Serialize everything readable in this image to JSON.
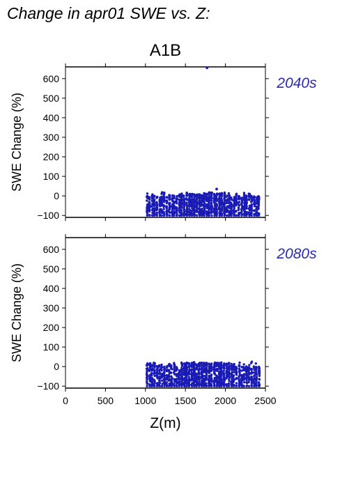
{
  "figure": {
    "title": "Change in apr01 SWE vs. Z:",
    "scenario": "A1B"
  },
  "chart_data": [
    {
      "type": "scatter",
      "period_label": "2040s",
      "ylabel": "SWE Change (%)",
      "xlabel": "",
      "xlim": [
        0,
        2500
      ],
      "ylim": [
        -110,
        660
      ],
      "xticks": [
        0,
        500,
        1000,
        1500,
        2000,
        2500
      ],
      "yticks": [
        -100,
        0,
        100,
        200,
        300,
        400,
        500,
        600
      ],
      "ytick_labels": [
        "−100",
        "0",
        "100",
        "200",
        "300",
        "400",
        "500",
        "600"
      ],
      "point_color": "#1a1ab4",
      "x_range_of_points": [
        1020,
        2420
      ],
      "y_range_of_points": [
        -100,
        20
      ],
      "outliers": [
        {
          "x": 1770,
          "y": 655
        },
        {
          "x": 1890,
          "y": 35
        }
      ]
    },
    {
      "type": "scatter",
      "period_label": "2080s",
      "ylabel": "SWE Change (%)",
      "xlabel": "Z(m)",
      "xlim": [
        0,
        2500
      ],
      "ylim": [
        -110,
        660
      ],
      "xticks": [
        0,
        500,
        1000,
        1500,
        2000,
        2500
      ],
      "xtick_labels": [
        "0",
        "500",
        "1000",
        "1500",
        "2000",
        "2500"
      ],
      "yticks": [
        -100,
        0,
        100,
        200,
        300,
        400,
        500,
        600
      ],
      "ytick_labels": [
        "−100",
        "0",
        "100",
        "200",
        "300",
        "400",
        "500",
        "600"
      ],
      "point_color": "#1a1ab4",
      "x_range_of_points": [
        1020,
        2420
      ],
      "y_range_of_points": [
        -100,
        25
      ],
      "outliers": []
    }
  ]
}
